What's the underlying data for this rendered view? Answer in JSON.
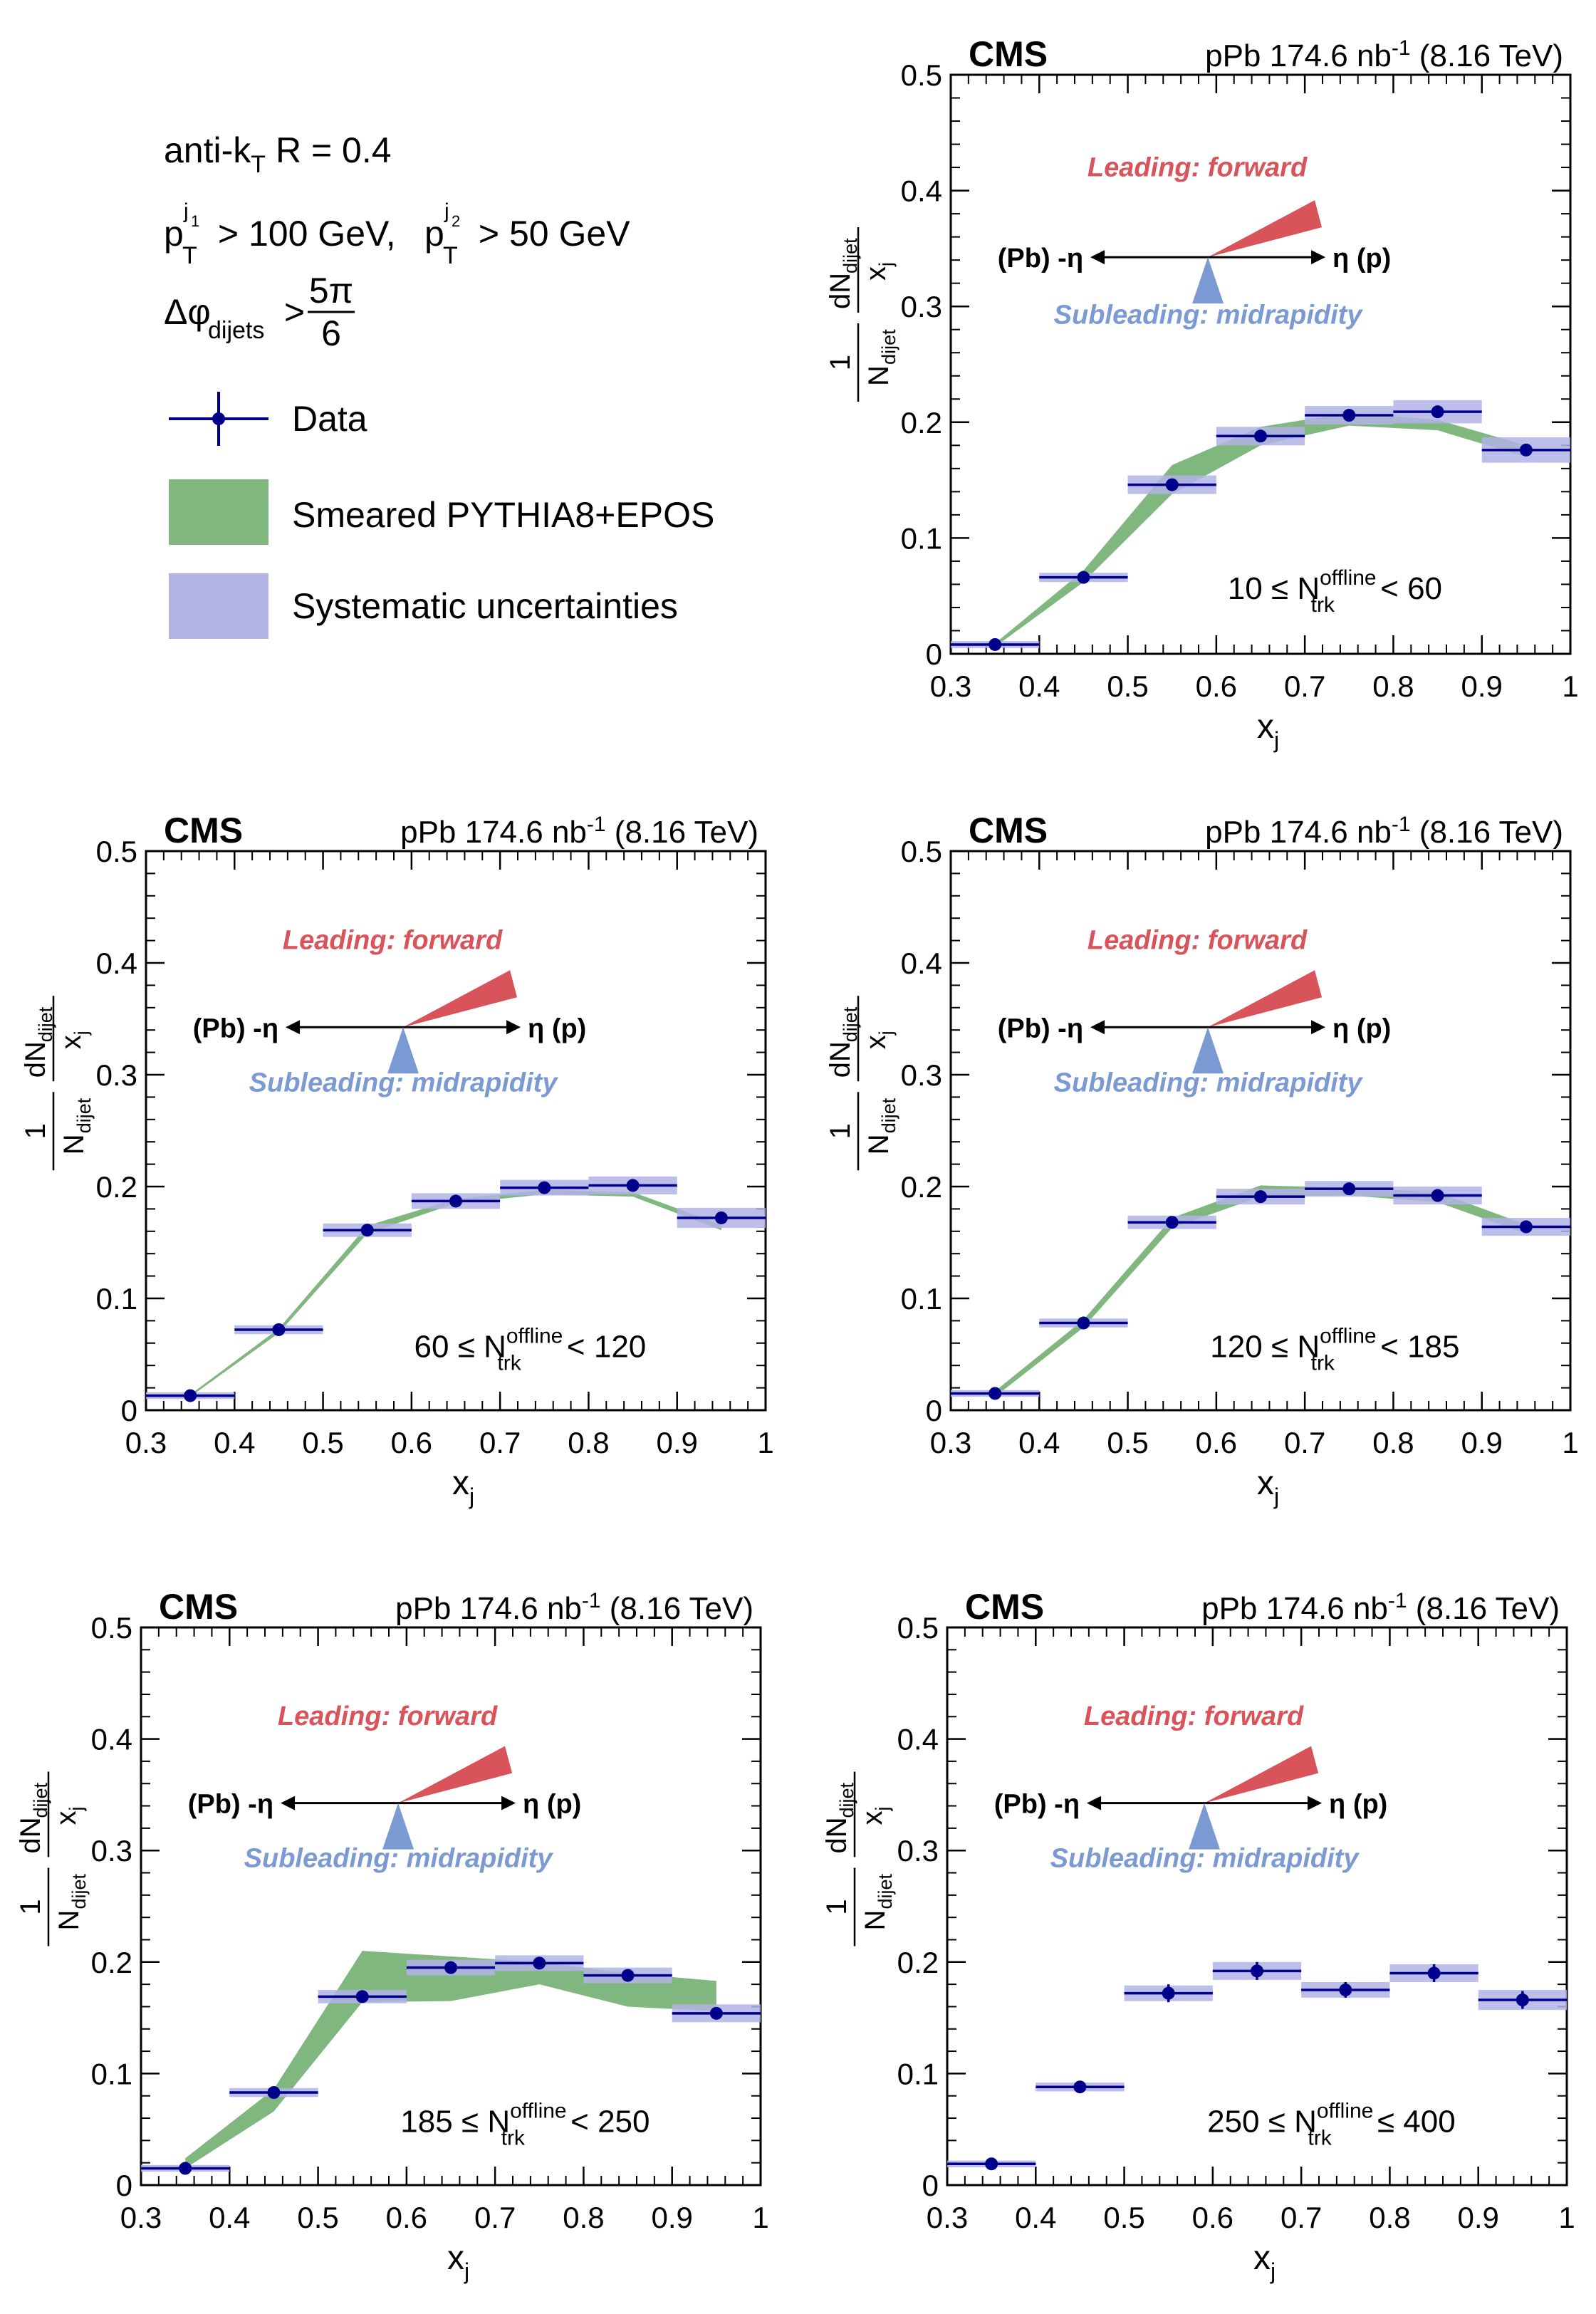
{
  "legend": {
    "jet_algo": "anti-k",
    "jet_algo_sub": "T",
    "jet_algo_rest": " R = 0.4",
    "pt_p1": "p",
    "pt_sub1": "T",
    "pt_sup1": "j",
    "pt_sup1b": "1",
    "pt_rest1": " > 100 GeV, ",
    "pt_p2": "p",
    "pt_sub2": "T",
    "pt_sup2": "j",
    "pt_sup2b": "2",
    "pt_rest2": " > 50 GeV",
    "dphi": "Δφ",
    "dphi_sub": "dijets",
    "dphi_gt": " >",
    "frac_num": "5π",
    "frac_den": "6",
    "entries": [
      {
        "label": "Data"
      },
      {
        "label": "Smeared PYTHIA8+EPOS"
      },
      {
        "label": "Systematic uncertainties"
      }
    ]
  },
  "colors": {
    "data": "#00008b",
    "model_band": "#7fb77e",
    "syst_box": "#b3b3e6",
    "leading": "#d9535a",
    "subleading": "#7b9ad3"
  },
  "panel_text": {
    "cms": "CMS",
    "lumi_main": "pPb 174.6 nb",
    "lumi_sup": "-1",
    "lumi_energy": " (8.16 TeV)",
    "leading_label": "Leading: forward",
    "subleading_label": "Subleading: midrapidity",
    "pb_label": "(Pb) -η",
    "p_label": "η (p)",
    "xlabel": "x",
    "xlabel_sub": "j",
    "ylabel_frac1_num": "1",
    "ylabel_frac1_den": "N",
    "ylabel_frac1_den_sub": "dijet",
    "ylabel_frac2_num": "dN",
    "ylabel_frac2_num_sub": "dijet",
    "ylabel_frac2_den": "x",
    "ylabel_frac2_den_sub": "j",
    "ntrk_N": "N",
    "ntrk_sup": "offline",
    "ntrk_sub": "trk"
  },
  "chart_data": [
    {
      "type": "scatter",
      "ntrk_low": "10 ≤ ",
      "ntrk_high": " < 60",
      "xlim": [
        0.3,
        1.0
      ],
      "ylim": [
        0,
        0.5
      ],
      "xticks": [
        "0.3",
        "0.4",
        "0.5",
        "0.6",
        "0.7",
        "0.8",
        "0.9",
        "1"
      ],
      "yticks": [
        "0",
        "0.1",
        "0.2",
        "0.3",
        "0.4",
        "0.5"
      ],
      "series": [
        {
          "name": "Data",
          "x": [
            0.35,
            0.45,
            0.55,
            0.65,
            0.75,
            0.85,
            0.95
          ],
          "y": [
            0.008,
            0.066,
            0.146,
            0.188,
            0.206,
            0.209,
            0.176
          ],
          "yerr": [
            0.001,
            0.002,
            0.003,
            0.003,
            0.003,
            0.003,
            0.003
          ],
          "syst": [
            0.003,
            0.004,
            0.008,
            0.008,
            0.008,
            0.01,
            0.011
          ]
        },
        {
          "name": "Smeared PYTHIA8+EPOS",
          "x": [
            0.35,
            0.45,
            0.55,
            0.65,
            0.75,
            0.85,
            0.95
          ],
          "lo": [
            0.006,
            0.062,
            0.138,
            0.18,
            0.197,
            0.193,
            0.17
          ],
          "hi": [
            0.009,
            0.072,
            0.163,
            0.196,
            0.208,
            0.202,
            0.18
          ]
        }
      ]
    },
    {
      "type": "scatter",
      "ntrk_low": "60 ≤ ",
      "ntrk_high": " < 120",
      "xlim": [
        0.3,
        1.0
      ],
      "ylim": [
        0,
        0.5
      ],
      "xticks": [
        "0.3",
        "0.4",
        "0.5",
        "0.6",
        "0.7",
        "0.8",
        "0.9",
        "1"
      ],
      "yticks": [
        "0",
        "0.1",
        "0.2",
        "0.3",
        "0.4",
        "0.5"
      ],
      "series": [
        {
          "name": "Data",
          "x": [
            0.35,
            0.45,
            0.55,
            0.65,
            0.75,
            0.85,
            0.95
          ],
          "y": [
            0.013,
            0.072,
            0.161,
            0.187,
            0.199,
            0.201,
            0.172
          ],
          "yerr": [
            0.001,
            0.002,
            0.002,
            0.002,
            0.002,
            0.002,
            0.002
          ],
          "syst": [
            0.003,
            0.004,
            0.006,
            0.007,
            0.007,
            0.008,
            0.009
          ]
        },
        {
          "name": "Smeared PYTHIA8+EPOS",
          "x": [
            0.35,
            0.45,
            0.55,
            0.65,
            0.75,
            0.85,
            0.95
          ],
          "lo": [
            0.012,
            0.069,
            0.158,
            0.185,
            0.193,
            0.191,
            0.161
          ],
          "hi": [
            0.014,
            0.073,
            0.165,
            0.189,
            0.197,
            0.195,
            0.166
          ]
        }
      ]
    },
    {
      "type": "scatter",
      "ntrk_low": "120 ≤ ",
      "ntrk_high": " < 185",
      "xlim": [
        0.3,
        1.0
      ],
      "ylim": [
        0,
        0.5
      ],
      "xticks": [
        "0.3",
        "0.4",
        "0.5",
        "0.6",
        "0.7",
        "0.8",
        "0.9",
        "1"
      ],
      "yticks": [
        "0",
        "0.1",
        "0.2",
        "0.3",
        "0.4",
        "0.5"
      ],
      "series": [
        {
          "name": "Data",
          "x": [
            0.35,
            0.45,
            0.55,
            0.65,
            0.75,
            0.85,
            0.95
          ],
          "y": [
            0.015,
            0.078,
            0.168,
            0.191,
            0.198,
            0.192,
            0.164
          ],
          "yerr": [
            0.001,
            0.002,
            0.002,
            0.002,
            0.002,
            0.002,
            0.002
          ],
          "syst": [
            0.003,
            0.004,
            0.006,
            0.007,
            0.007,
            0.008,
            0.008
          ]
        },
        {
          "name": "Smeared PYTHIA8+EPOS",
          "x": [
            0.35,
            0.45,
            0.55,
            0.65,
            0.75,
            0.85,
            0.95
          ],
          "lo": [
            0.012,
            0.074,
            0.163,
            0.191,
            0.192,
            0.186,
            0.158
          ],
          "hi": [
            0.017,
            0.081,
            0.172,
            0.201,
            0.199,
            0.195,
            0.166
          ]
        }
      ]
    },
    {
      "type": "scatter",
      "ntrk_low": "185 ≤ ",
      "ntrk_high": " < 250",
      "xlim": [
        0.3,
        1.0
      ],
      "ylim": [
        0,
        0.5
      ],
      "xticks": [
        "0.3",
        "0.4",
        "0.5",
        "0.6",
        "0.7",
        "0.8",
        "0.9",
        "1"
      ],
      "yticks": [
        "0",
        "0.1",
        "0.2",
        "0.3",
        "0.4",
        "0.5"
      ],
      "series": [
        {
          "name": "Data",
          "x": [
            0.35,
            0.45,
            0.55,
            0.65,
            0.75,
            0.85,
            0.95
          ],
          "y": [
            0.015,
            0.083,
            0.169,
            0.195,
            0.199,
            0.188,
            0.154
          ],
          "yerr": [
            0.001,
            0.002,
            0.003,
            0.003,
            0.003,
            0.003,
            0.003
          ],
          "syst": [
            0.003,
            0.004,
            0.006,
            0.007,
            0.007,
            0.007,
            0.008
          ]
        },
        {
          "name": "Smeared PYTHIA8+EPOS",
          "x": [
            0.35,
            0.45,
            0.55,
            0.65,
            0.75,
            0.85,
            0.95
          ],
          "lo": [
            0.015,
            0.066,
            0.164,
            0.165,
            0.18,
            0.16,
            0.156
          ],
          "hi": [
            0.024,
            0.086,
            0.21,
            0.205,
            0.2,
            0.19,
            0.183
          ]
        }
      ]
    },
    {
      "type": "scatter",
      "ntrk_low": "250 ≤ ",
      "ntrk_high": " ≤ 400",
      "xlim": [
        0.3,
        1.0
      ],
      "ylim": [
        0,
        0.5
      ],
      "xticks": [
        "0.3",
        "0.4",
        "0.5",
        "0.6",
        "0.7",
        "0.8",
        "0.9",
        "1"
      ],
      "yticks": [
        "0",
        "0.1",
        "0.2",
        "0.3",
        "0.4",
        "0.5"
      ],
      "series": [
        {
          "name": "Data",
          "x": [
            0.35,
            0.45,
            0.55,
            0.65,
            0.75,
            0.85,
            0.95
          ],
          "y": [
            0.019,
            0.088,
            0.172,
            0.192,
            0.175,
            0.19,
            0.166
          ],
          "yerr": [
            0.002,
            0.004,
            0.008,
            0.008,
            0.007,
            0.008,
            0.008
          ],
          "syst": [
            0.003,
            0.004,
            0.007,
            0.008,
            0.007,
            0.008,
            0.009
          ]
        }
      ]
    }
  ]
}
